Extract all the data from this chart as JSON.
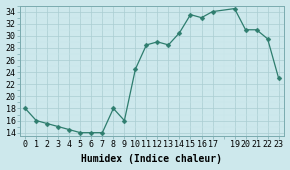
{
  "x": [
    0,
    1,
    2,
    3,
    4,
    5,
    6,
    7,
    8,
    9,
    10,
    11,
    12,
    13,
    14,
    15,
    16,
    17,
    19,
    20,
    21,
    22,
    23
  ],
  "y": [
    18,
    16,
    15.5,
    15,
    14.5,
    14,
    14,
    14,
    18,
    16,
    24.5,
    28.5,
    29,
    28.5,
    30.5,
    33.5,
    33,
    34,
    34.5,
    31,
    31,
    29.5,
    23
  ],
  "xlabel": "Humidex (Indice chaleur)",
  "xlim": [
    -0.5,
    23.5
  ],
  "ylim": [
    13.5,
    35
  ],
  "yticks": [
    14,
    16,
    18,
    20,
    22,
    24,
    26,
    28,
    30,
    32,
    34
  ],
  "xtick_positions": [
    0,
    1,
    2,
    3,
    4,
    5,
    6,
    7,
    8,
    9,
    10,
    11,
    12,
    13,
    14,
    15,
    16,
    17,
    19,
    20,
    21,
    22,
    23
  ],
  "xtick_labels": [
    "0",
    "1",
    "2",
    "3",
    "4",
    "5",
    "6",
    "7",
    "8",
    "9",
    "10",
    "11",
    "12",
    "13",
    "14",
    "15",
    "16",
    "17",
    "19",
    "20",
    "21",
    "22",
    "23"
  ],
  "line_color": "#2e7d6e",
  "marker": "D",
  "marker_size": 2.5,
  "bg_color": "#cde8ec",
  "grid_major_color": "#b0d4d8",
  "grid_minor_color": "#daeef0",
  "xlabel_fontsize": 7,
  "tick_fontsize": 6
}
